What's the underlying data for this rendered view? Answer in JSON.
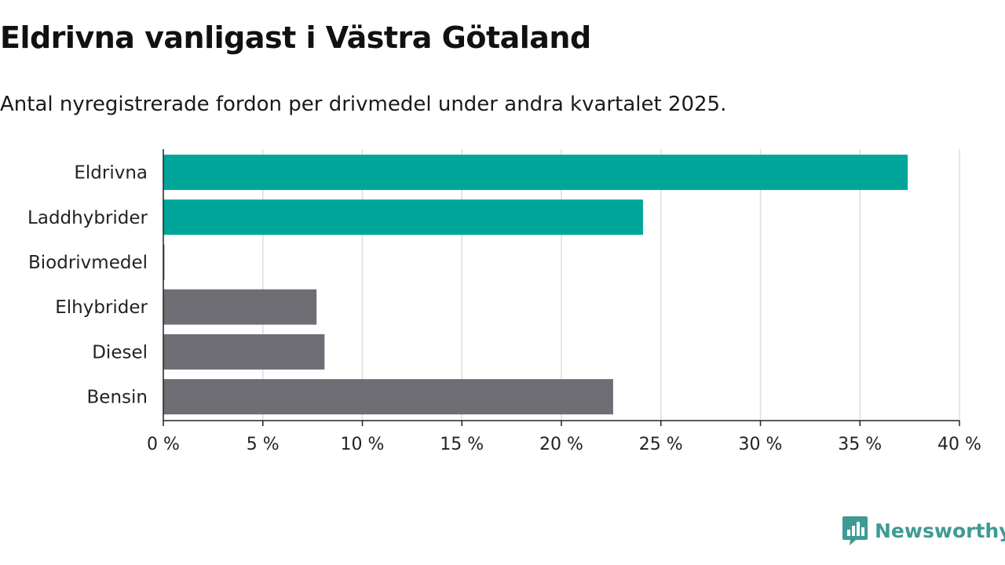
{
  "title": "Eldrivna vanligast i Västra Götaland",
  "subtitle": "Antal nyregistrerade fordon per drivmedel under andra kvartalet 2025.",
  "brand": {
    "name": "Newsworthy",
    "icon": "newsworthy-logo-icon",
    "color": "#3f9a94"
  },
  "colors": {
    "highlight": "#00a59a",
    "default": "#6f6e74",
    "grid": "#dddddd",
    "axis": "#222222"
  },
  "chart_data": {
    "type": "bar",
    "orientation": "horizontal",
    "categories": [
      "Eldrivna",
      "Laddhybrider",
      "Biodrivmedel",
      "Elhybrider",
      "Diesel",
      "Bensin"
    ],
    "values": [
      37.4,
      24.1,
      0.05,
      7.7,
      8.1,
      22.6
    ],
    "highlighted": [
      true,
      true,
      false,
      false,
      false,
      false
    ],
    "xlim": [
      0,
      40
    ],
    "xticks": [
      0,
      5,
      10,
      15,
      20,
      25,
      30,
      35,
      40
    ],
    "xtick_labels": [
      "0 %",
      "5 %",
      "10 %",
      "15 %",
      "20 %",
      "25 %",
      "30 %",
      "35 %",
      "40 %"
    ],
    "unit": "%",
    "grid": true
  }
}
